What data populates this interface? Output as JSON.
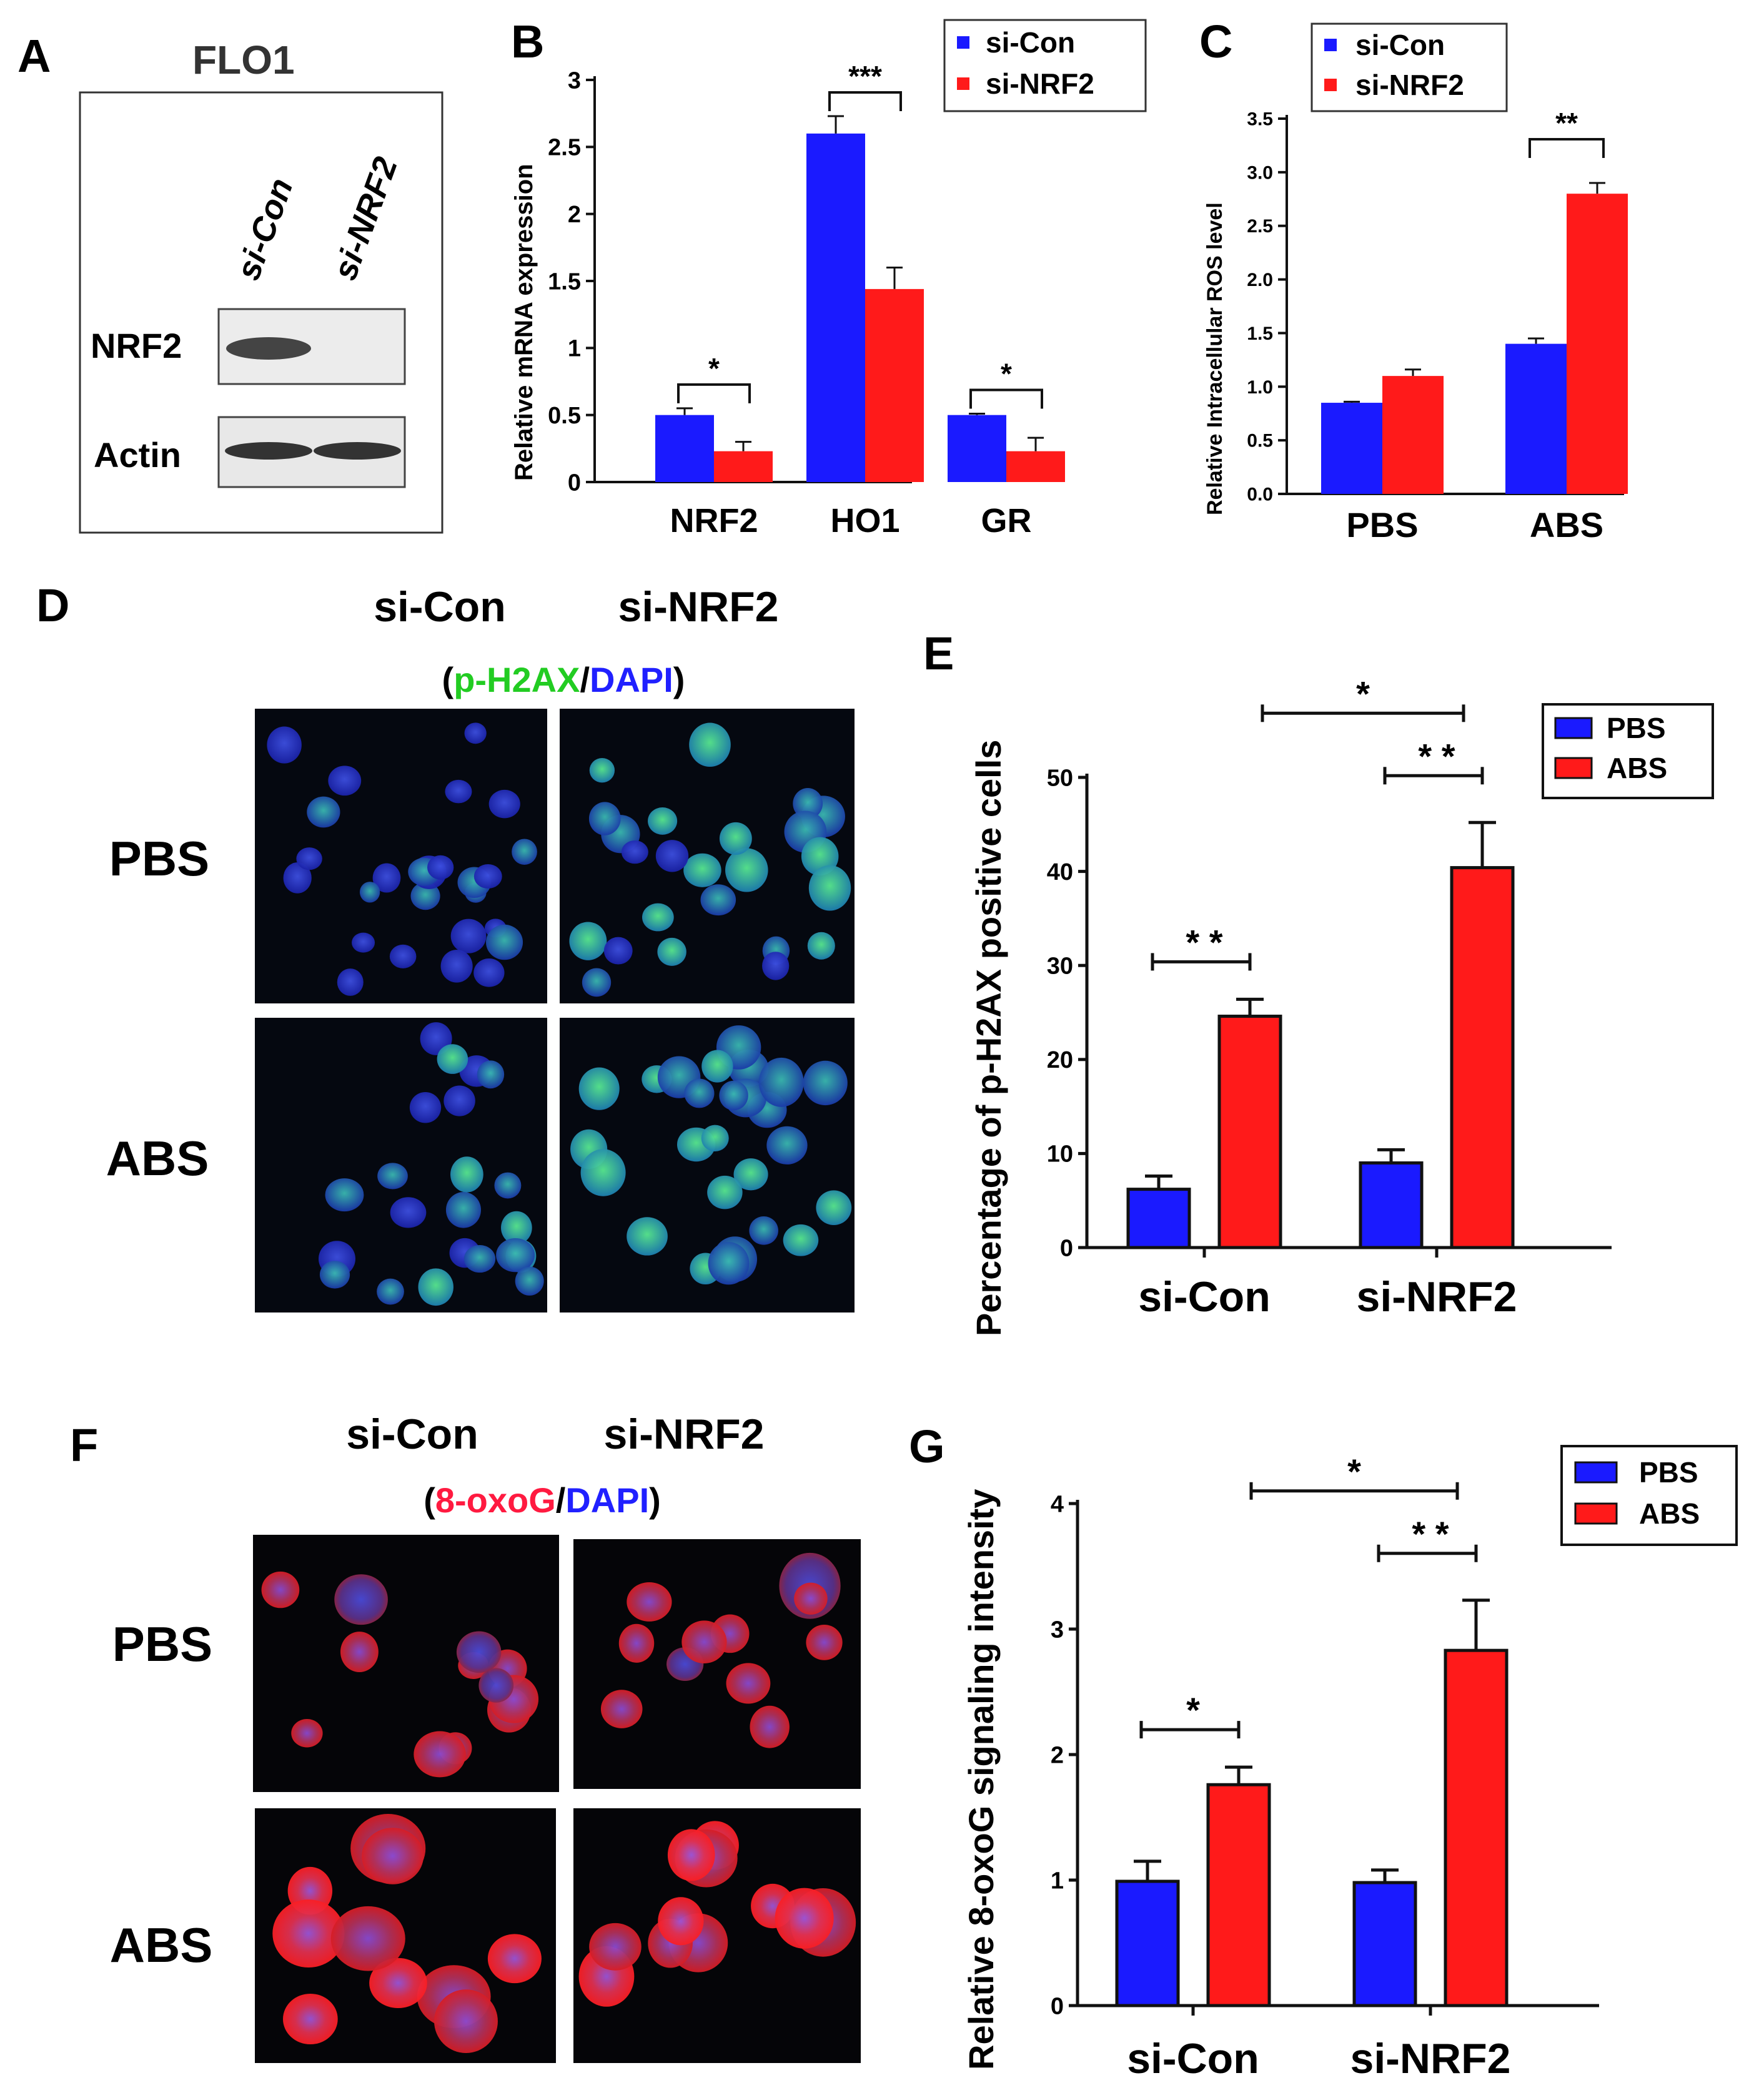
{
  "figure": {
    "colors": {
      "si_con": "#1a1aff",
      "si_nrf2": "#ff1a1a",
      "pbs": "#1a1aff",
      "abs": "#ff1a1a",
      "ph2ax_label": "#22cc22",
      "dapi_label": "#2020ff",
      "oxog_label": "#ff1a40"
    },
    "panel_letters": [
      "A",
      "B",
      "C",
      "D",
      "E",
      "F",
      "G"
    ],
    "panelA": {
      "letter": "A",
      "title": "FLO1",
      "lanes": [
        "si-Con",
        "si-NRF2"
      ],
      "blots": [
        "NRF2",
        "Actin"
      ]
    },
    "panelD": {
      "letter": "D",
      "columns": [
        "si-Con",
        "si-NRF2"
      ],
      "rows": [
        "PBS",
        "ABS"
      ],
      "stain_paren_open": "(",
      "stain_a": "p-H2AX",
      "stain_slash": "/",
      "stain_b": "DAPI",
      "stain_paren_close": ")"
    },
    "panelF": {
      "letter": "F",
      "columns": [
        "si-Con",
        "si-NRF2"
      ],
      "rows": [
        "PBS",
        "ABS"
      ],
      "stain_paren_open": "(",
      "stain_a": "8-oxoG",
      "stain_slash": "/",
      "stain_b": "DAPI",
      "stain_paren_close": ")"
    }
  },
  "chart_data": [
    {
      "panel": "B",
      "type": "bar",
      "categories": [
        "NRF2",
        "HO1",
        "GR"
      ],
      "series": [
        {
          "name": "si-Con",
          "values": [
            0.5,
            2.6,
            0.5
          ],
          "errors": [
            0.05,
            0.13,
            0.01
          ]
        },
        {
          "name": "si-NRF2",
          "values": [
            0.23,
            1.44,
            0.23
          ],
          "errors": [
            0.07,
            0.16,
            0.1
          ]
        }
      ],
      "ylabel": "Relative mRNA expression",
      "ylim": [
        0,
        3
      ],
      "yticks": [
        "0",
        "0.5",
        "1",
        "1.5",
        "2",
        "2.5",
        "3"
      ],
      "significance": [
        "*",
        "***",
        "*"
      ],
      "legend": "top-right"
    },
    {
      "panel": "C",
      "type": "bar",
      "categories": [
        "PBS",
        "ABS"
      ],
      "series": [
        {
          "name": "si-Con",
          "values": [
            0.85,
            1.4
          ],
          "errors": [
            0.01,
            0.05
          ]
        },
        {
          "name": "si-NRF2",
          "values": [
            1.1,
            2.8
          ],
          "errors": [
            0.06,
            0.1
          ]
        }
      ],
      "ylabel": "Relative Intracellular ROS level",
      "ylim": [
        0,
        3.5
      ],
      "yticks": [
        "0.0",
        "0.5",
        "1.0",
        "1.5",
        "2.0",
        "2.5",
        "3.0",
        "3.5"
      ],
      "significance": [
        "",
        "**"
      ],
      "legend": "top-left"
    },
    {
      "panel": "E",
      "type": "bar",
      "categories": [
        "si-Con",
        "si-NRF2"
      ],
      "series": [
        {
          "name": "PBS",
          "values": [
            6.2,
            9.0
          ],
          "errors": [
            1.4,
            1.4
          ]
        },
        {
          "name": "ABS",
          "values": [
            24.6,
            40.4
          ],
          "errors": [
            1.8,
            4.8
          ]
        }
      ],
      "ylabel": "Percentage of p-H2AX positive cells",
      "ylim": [
        0,
        50
      ],
      "yticks": [
        "0",
        "10",
        "20",
        "30",
        "40",
        "50"
      ],
      "significance": {
        "within": [
          "* *",
          "* *"
        ],
        "between": "*"
      },
      "legend": "top-right"
    },
    {
      "panel": "G",
      "type": "bar",
      "categories": [
        "si-Con",
        "si-NRF2"
      ],
      "series": [
        {
          "name": "PBS",
          "values": [
            0.99,
            0.98
          ],
          "errors": [
            0.16,
            0.1
          ]
        },
        {
          "name": "ABS",
          "values": [
            1.76,
            2.83
          ],
          "errors": [
            0.14,
            0.4
          ]
        }
      ],
      "ylabel": "Relative 8-oxoG signaling intensity",
      "ylim": [
        0,
        4
      ],
      "yticks": [
        "0",
        "1",
        "2",
        "3",
        "4"
      ],
      "significance": {
        "within": [
          "*",
          "* *"
        ],
        "between": "*"
      },
      "legend": "top-right"
    }
  ]
}
